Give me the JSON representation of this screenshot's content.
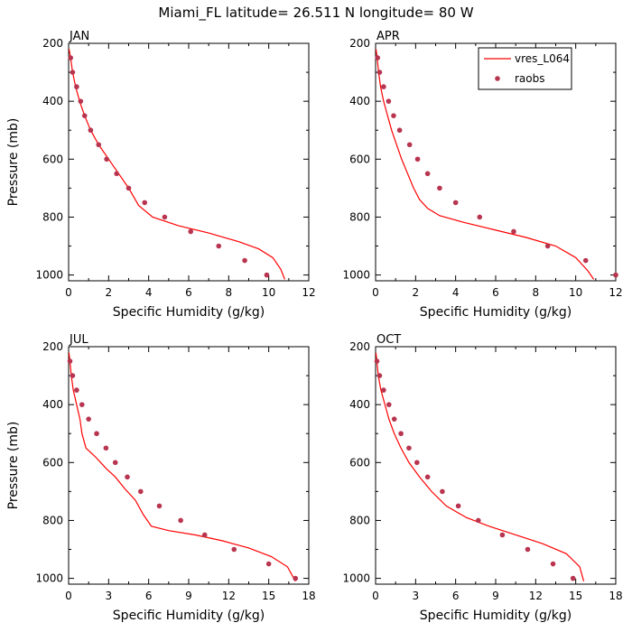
{
  "figure": {
    "title": "Miami_FL  latitude= 26.511 N longitude= 80 W"
  },
  "colors": {
    "model_line": "#ff0000",
    "obs_marker": "#b8344f",
    "axis": "#000000"
  },
  "legend": {
    "model_label": "vres_L064",
    "obs_label": "raobs",
    "placement": "top-right of APR panel"
  },
  "chart_data": [
    {
      "type": "line",
      "panel_title": "JAN",
      "xlabel": "Specific Humidity (g/kg)",
      "ylabel": "Pressure (mb)",
      "xlim": [
        0,
        12
      ],
      "ylim": [
        1020,
        200
      ],
      "xticks": [
        0,
        2,
        4,
        6,
        8,
        10,
        12
      ],
      "yticks": [
        200,
        400,
        600,
        800,
        1000
      ],
      "series": [
        {
          "name": "vres_L064",
          "style": "line",
          "points": [
            [
              0.02,
              220
            ],
            [
              0.1,
              250
            ],
            [
              0.2,
              300
            ],
            [
              0.35,
              350
            ],
            [
              0.55,
              400
            ],
            [
              0.8,
              450
            ],
            [
              1.1,
              500
            ],
            [
              1.5,
              550
            ],
            [
              2.0,
              600
            ],
            [
              2.5,
              650
            ],
            [
              3.0,
              700
            ],
            [
              3.5,
              760
            ],
            [
              4.2,
              800
            ],
            [
              5.5,
              830
            ],
            [
              7.0,
              855
            ],
            [
              8.5,
              885
            ],
            [
              9.5,
              910
            ],
            [
              10.2,
              940
            ],
            [
              10.6,
              980
            ],
            [
              10.8,
              1015
            ]
          ]
        },
        {
          "name": "raobs",
          "style": "marker",
          "points": [
            [
              0.1,
              250
            ],
            [
              0.2,
              300
            ],
            [
              0.4,
              350
            ],
            [
              0.6,
              400
            ],
            [
              0.8,
              450
            ],
            [
              1.1,
              500
            ],
            [
              1.5,
              550
            ],
            [
              1.9,
              600
            ],
            [
              2.4,
              650
            ],
            [
              3.0,
              700
            ],
            [
              3.8,
              750
            ],
            [
              4.8,
              800
            ],
            [
              6.1,
              850
            ],
            [
              7.5,
              900
            ],
            [
              8.8,
              950
            ],
            [
              9.9,
              1000
            ]
          ]
        }
      ]
    },
    {
      "type": "line",
      "panel_title": "APR",
      "xlabel": "Specific Humidity (g/kg)",
      "ylabel": "",
      "xlim": [
        0,
        12
      ],
      "ylim": [
        1020,
        200
      ],
      "xticks": [
        0,
        2,
        4,
        6,
        8,
        10,
        12
      ],
      "yticks": [
        200,
        400,
        600,
        800,
        1000
      ],
      "series": [
        {
          "name": "vres_L064",
          "style": "line",
          "points": [
            [
              0.02,
              220
            ],
            [
              0.08,
              250
            ],
            [
              0.15,
              300
            ],
            [
              0.25,
              350
            ],
            [
              0.4,
              400
            ],
            [
              0.6,
              450
            ],
            [
              0.8,
              500
            ],
            [
              1.05,
              550
            ],
            [
              1.3,
              600
            ],
            [
              1.6,
              650
            ],
            [
              1.9,
              700
            ],
            [
              2.2,
              740
            ],
            [
              2.6,
              770
            ],
            [
              3.2,
              795
            ],
            [
              4.5,
              820
            ],
            [
              6.0,
              845
            ],
            [
              7.5,
              870
            ],
            [
              9.0,
              900
            ],
            [
              10.0,
              940
            ],
            [
              10.6,
              985
            ],
            [
              10.9,
              1015
            ]
          ]
        },
        {
          "name": "raobs",
          "style": "marker",
          "points": [
            [
              0.1,
              250
            ],
            [
              0.2,
              300
            ],
            [
              0.4,
              350
            ],
            [
              0.65,
              400
            ],
            [
              0.9,
              450
            ],
            [
              1.2,
              500
            ],
            [
              1.7,
              550
            ],
            [
              2.1,
              600
            ],
            [
              2.6,
              650
            ],
            [
              3.2,
              700
            ],
            [
              4.0,
              750
            ],
            [
              5.2,
              800
            ],
            [
              6.9,
              850
            ],
            [
              8.6,
              900
            ],
            [
              10.5,
              950
            ],
            [
              12.0,
              1000
            ]
          ]
        }
      ]
    },
    {
      "type": "line",
      "panel_title": "JUL",
      "xlabel": "Specific Humidity (g/kg)",
      "ylabel": "Pressure (mb)",
      "xlim": [
        0,
        18
      ],
      "ylim": [
        1020,
        200
      ],
      "xticks": [
        0,
        3,
        6,
        9,
        12,
        15,
        18
      ],
      "yticks": [
        200,
        400,
        600,
        800,
        1000
      ],
      "series": [
        {
          "name": "vres_L064",
          "style": "line",
          "points": [
            [
              0.02,
              220
            ],
            [
              0.1,
              250
            ],
            [
              0.2,
              300
            ],
            [
              0.35,
              350
            ],
            [
              0.6,
              400
            ],
            [
              0.85,
              450
            ],
            [
              1.0,
              500
            ],
            [
              1.3,
              550
            ],
            [
              2.0,
              580
            ],
            [
              2.8,
              620
            ],
            [
              3.5,
              650
            ],
            [
              4.2,
              690
            ],
            [
              5.0,
              730
            ],
            [
              5.6,
              780
            ],
            [
              6.2,
              820
            ],
            [
              7.5,
              835
            ],
            [
              9.5,
              850
            ],
            [
              11.5,
              870
            ],
            [
              13.5,
              895
            ],
            [
              15.2,
              925
            ],
            [
              16.4,
              960
            ],
            [
              17.0,
              1010
            ]
          ]
        },
        {
          "name": "raobs",
          "style": "marker",
          "points": [
            [
              0.1,
              250
            ],
            [
              0.3,
              300
            ],
            [
              0.6,
              350
            ],
            [
              1.0,
              400
            ],
            [
              1.5,
              450
            ],
            [
              2.1,
              500
            ],
            [
              2.8,
              550
            ],
            [
              3.5,
              600
            ],
            [
              4.4,
              650
            ],
            [
              5.4,
              700
            ],
            [
              6.8,
              750
            ],
            [
              8.4,
              800
            ],
            [
              10.2,
              850
            ],
            [
              12.4,
              900
            ],
            [
              15.0,
              950
            ],
            [
              17.0,
              1000
            ]
          ]
        }
      ]
    },
    {
      "type": "line",
      "panel_title": "OCT",
      "xlabel": "Specific Humidity (g/kg)",
      "ylabel": "",
      "xlim": [
        0,
        18
      ],
      "ylim": [
        1020,
        200
      ],
      "xticks": [
        0,
        3,
        6,
        9,
        12,
        15,
        18
      ],
      "yticks": [
        200,
        400,
        600,
        800,
        1000
      ],
      "series": [
        {
          "name": "vres_L064",
          "style": "line",
          "points": [
            [
              0.02,
              220
            ],
            [
              0.1,
              250
            ],
            [
              0.2,
              300
            ],
            [
              0.4,
              350
            ],
            [
              0.7,
              400
            ],
            [
              1.0,
              450
            ],
            [
              1.4,
              500
            ],
            [
              1.9,
              550
            ],
            [
              2.5,
              600
            ],
            [
              3.3,
              650
            ],
            [
              4.2,
              700
            ],
            [
              5.3,
              750
            ],
            [
              6.8,
              790
            ],
            [
              8.5,
              820
            ],
            [
              10.5,
              850
            ],
            [
              12.5,
              880
            ],
            [
              14.3,
              915
            ],
            [
              15.3,
              960
            ],
            [
              15.6,
              1010
            ]
          ]
        },
        {
          "name": "raobs",
          "style": "marker",
          "points": [
            [
              0.1,
              250
            ],
            [
              0.3,
              300
            ],
            [
              0.6,
              350
            ],
            [
              1.0,
              400
            ],
            [
              1.4,
              450
            ],
            [
              1.9,
              500
            ],
            [
              2.5,
              550
            ],
            [
              3.1,
              600
            ],
            [
              3.9,
              650
            ],
            [
              5.0,
              700
            ],
            [
              6.2,
              750
            ],
            [
              7.7,
              800
            ],
            [
              9.5,
              850
            ],
            [
              11.4,
              900
            ],
            [
              13.3,
              950
            ],
            [
              14.8,
              1000
            ]
          ]
        }
      ]
    }
  ]
}
